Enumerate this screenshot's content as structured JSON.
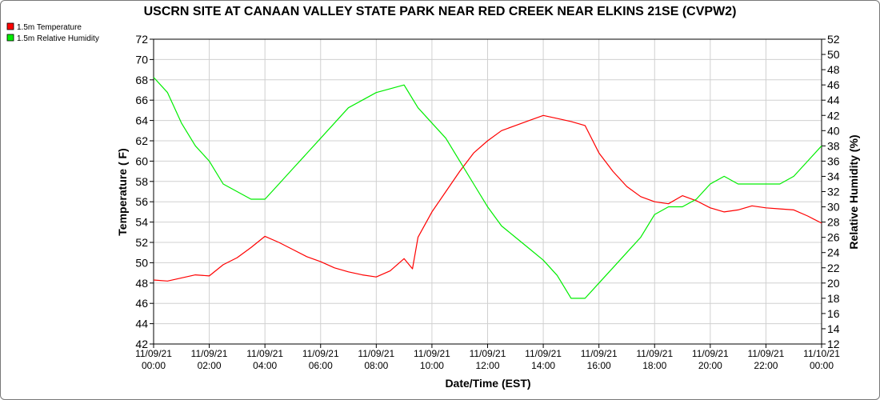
{
  "title": "USCRN SITE AT CANAAN VALLEY STATE PARK NEAR RED CREEK NEAR ELKINS 21SE (CVPW2)",
  "legend": [
    {
      "label": "1.5m Temperature",
      "color": "#ff0000"
    },
    {
      "label": "1.5m Relative Humidity",
      "color": "#00ee00"
    }
  ],
  "chart_data": {
    "type": "line",
    "title": "USCRN SITE AT CANAAN VALLEY STATE PARK NEAR RED CREEK NEAR ELKINS 21SE (CVPW2)",
    "xlabel": "Date/Time (EST)",
    "ylabel_left": "Temperature ( F)",
    "ylabel_right": "Relative Humidity (%)",
    "ylim_left": [
      42,
      72
    ],
    "ylim_right": [
      12,
      52
    ],
    "yticks_left": [
      "42",
      "44",
      "46",
      "48",
      "50",
      "52",
      "54",
      "56",
      "58",
      "60",
      "62",
      "64",
      "66",
      "68",
      "70",
      "72"
    ],
    "yticks_right": [
      "12",
      "14",
      "16",
      "18",
      "20",
      "22",
      "24",
      "26",
      "28",
      "30",
      "32",
      "34",
      "36",
      "38",
      "40",
      "42",
      "44",
      "46",
      "48",
      "50",
      "52"
    ],
    "xticks": [
      {
        "date": "11/09/21",
        "time": "00:00"
      },
      {
        "date": "11/09/21",
        "time": "02:00"
      },
      {
        "date": "11/09/21",
        "time": "04:00"
      },
      {
        "date": "11/09/21",
        "time": "06:00"
      },
      {
        "date": "11/09/21",
        "time": "08:00"
      },
      {
        "date": "11/09/21",
        "time": "10:00"
      },
      {
        "date": "11/09/21",
        "time": "12:00"
      },
      {
        "date": "11/09/21",
        "time": "14:00"
      },
      {
        "date": "11/09/21",
        "time": "16:00"
      },
      {
        "date": "11/09/21",
        "time": "18:00"
      },
      {
        "date": "11/09/21",
        "time": "20:00"
      },
      {
        "date": "11/09/21",
        "time": "22:00"
      },
      {
        "date": "11/10/21",
        "time": "00:00"
      }
    ],
    "xlim_hours": [
      0,
      24
    ],
    "grid": true,
    "legend_position": "top-left",
    "series": [
      {
        "name": "1.5m Temperature",
        "axis": "left",
        "color": "#ff0000",
        "x": [
          0,
          0.5,
          1,
          1.5,
          2,
          2.5,
          3,
          3.5,
          4,
          4.5,
          5,
          5.5,
          6,
          6.5,
          7,
          7.5,
          8,
          8.5,
          9,
          9.3,
          9.5,
          10,
          10.5,
          11,
          11.5,
          12,
          12.5,
          13,
          13.5,
          14,
          14.5,
          15,
          15.5,
          16,
          16.5,
          17,
          17.5,
          18,
          18.5,
          19,
          19.5,
          20,
          20.5,
          21,
          21.5,
          22,
          22.5,
          23,
          23.5,
          24
        ],
        "y": [
          48.3,
          48.2,
          48.5,
          48.8,
          48.7,
          49.8,
          50.5,
          51.5,
          52.6,
          52.0,
          51.3,
          50.6,
          50.1,
          49.5,
          49.1,
          48.8,
          48.6,
          49.2,
          50.4,
          49.4,
          52.5,
          55.0,
          57.0,
          59.0,
          60.8,
          62.0,
          63.0,
          63.5,
          64.0,
          64.5,
          64.2,
          63.9,
          63.5,
          60.8,
          59.0,
          57.5,
          56.5,
          56.0,
          55.8,
          56.6,
          56.1,
          55.4,
          55.0,
          55.2,
          55.6,
          55.4,
          55.3,
          55.2,
          54.6,
          53.9
        ]
      },
      {
        "name": "1.5m Relative Humidity",
        "axis": "right",
        "color": "#00ee00",
        "x": [
          0,
          0.5,
          1,
          1.5,
          2,
          2.5,
          3,
          3.5,
          4,
          4.5,
          5,
          5.5,
          6,
          6.5,
          7,
          7.5,
          8,
          8.5,
          9,
          9.5,
          10,
          10.5,
          11,
          11.5,
          12,
          12.5,
          13,
          13.5,
          14,
          14.5,
          15,
          15.5,
          16,
          16.5,
          17,
          17.5,
          18,
          18.5,
          19,
          19.5,
          20,
          20.5,
          21,
          21.5,
          22,
          22.5,
          23,
          23.5,
          24
        ],
        "y": [
          47,
          45,
          41,
          38,
          36,
          33,
          32,
          31,
          31,
          33,
          35,
          37,
          39,
          41,
          43,
          44,
          45,
          45.5,
          46,
          43,
          41,
          39,
          36,
          33,
          30,
          27.5,
          26,
          24.5,
          23,
          21,
          18,
          18,
          20,
          22,
          24,
          26,
          29,
          30,
          30,
          31,
          33,
          34,
          33,
          33,
          33,
          33,
          34,
          36,
          38
        ]
      }
    ]
  }
}
